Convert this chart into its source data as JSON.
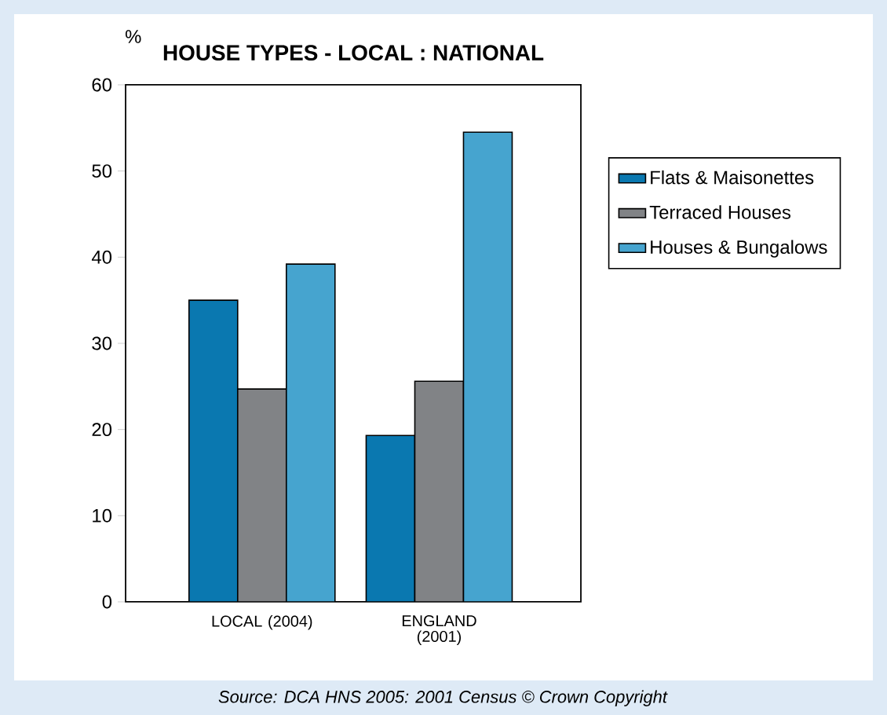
{
  "chart_data": {
    "type": "bar",
    "title": "HOUSE TYPES - LOCAL : NATIONAL",
    "ylabel": "%",
    "categories": [
      "LOCAL (2004)",
      "ENGLAND (2001)"
    ],
    "series": [
      {
        "name": "Flats & Maisonettes",
        "color": "#0a78b0",
        "values": [
          35,
          19.3
        ]
      },
      {
        "name": "Terraced Houses",
        "color": "#818386",
        "values": [
          24.7,
          25.6
        ]
      },
      {
        "name": "Houses & Bungalows",
        "color": "#46a4cf",
        "values": [
          39.2,
          54.5
        ]
      }
    ],
    "ylim": [
      0,
      60
    ],
    "yticks": [
      0,
      10,
      20,
      30,
      40,
      50,
      60
    ],
    "grid": false,
    "legend": "right",
    "annotations": [
      "Source: DCA HNS 2005: 2001 Census © Crown Copyright"
    ]
  }
}
